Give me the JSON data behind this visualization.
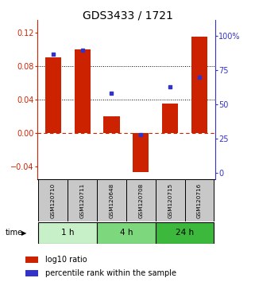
{
  "title": "GDS3433 / 1721",
  "samples": [
    "GSM120710",
    "GSM120711",
    "GSM120648",
    "GSM120708",
    "GSM120715",
    "GSM120716"
  ],
  "groups": [
    {
      "label": "1 h",
      "indices": [
        0,
        1
      ],
      "color": "#c8f0c8"
    },
    {
      "label": "4 h",
      "indices": [
        2,
        3
      ],
      "color": "#7dd87d"
    },
    {
      "label": "24 h",
      "indices": [
        4,
        5
      ],
      "color": "#3cb83c"
    }
  ],
  "log10_ratio": [
    0.09,
    0.1,
    0.02,
    -0.047,
    0.035,
    0.115
  ],
  "percentile_rank": [
    87,
    90,
    58,
    28,
    63,
    70
  ],
  "bar_color": "#cc2200",
  "dot_color": "#3333cc",
  "ylim_left": [
    -0.055,
    0.135
  ],
  "ylim_right": [
    -4.5,
    112
  ],
  "yticks_left": [
    -0.04,
    0.0,
    0.04,
    0.08,
    0.12
  ],
  "yticks_right": [
    0,
    25,
    50,
    75,
    100
  ],
  "ytick_labels_right": [
    "0",
    "25",
    "50",
    "75",
    "100%"
  ],
  "sample_box_color": "#c8c8c8",
  "title_fontsize": 10,
  "tick_fontsize": 7,
  "legend_fontsize": 7
}
